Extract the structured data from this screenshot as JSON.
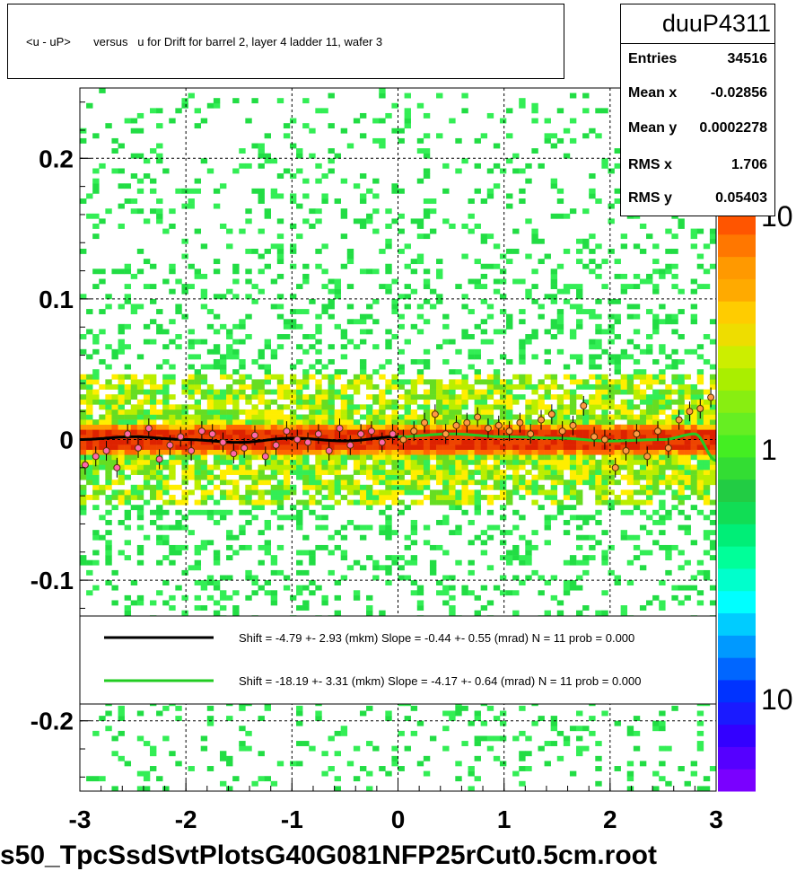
{
  "title": "<u - uP>       versus   u for Drift for barrel 2, layer 4 ladder 11, wafer 3",
  "stats": {
    "name": "duuP4311",
    "rows": [
      {
        "key": "Entries",
        "value": "34516"
      },
      {
        "key": "Mean x",
        "value": "-0.02856"
      },
      {
        "key": "Mean y",
        "value": "0.0002278"
      },
      {
        "key": "RMS x",
        "value": "1.706"
      },
      {
        "key": "RMS y",
        "value": "0.05403"
      }
    ]
  },
  "footer": "s50_TpcSsdSvtPlotsG40G081NFP25rCut0.5cm.root",
  "palette_labels": [
    "10",
    "1",
    "10"
  ],
  "legend": [
    {
      "color": "#000000",
      "text": "Shift =    -4.79 +- 2.93 (mkm) Slope =    -0.44 +- 0.55 (mrad)  N = 11 prob = 0.000"
    },
    {
      "color": "#22cc22",
      "text": "Shift =   -18.19 +- 3.31 (mkm) Slope =    -4.17 +- 0.64 (mrad)  N = 11 prob = 0.000"
    }
  ],
  "chart_data": {
    "type": "heatmap",
    "title": "<u - uP>       versus   u for Drift for barrel 2, layer 4 ladder 11, wafer 3",
    "xlabel": "",
    "ylabel": "",
    "xlim": [
      -3,
      3
    ],
    "ylim": [
      -0.25,
      0.25
    ],
    "x_ticks": [
      -3,
      -2,
      -1,
      0,
      1,
      2,
      3
    ],
    "y_ticks": [
      -0.2,
      -0.1,
      0,
      0.1,
      0.2
    ],
    "x_tick_labels": [
      "-3",
      "-2",
      "-1",
      "0",
      "1",
      "2",
      "3"
    ],
    "y_tick_labels": [
      "-0.2",
      "-0.1",
      "0",
      "0.1",
      "0.2"
    ],
    "grid": true,
    "colorbar": "rainbow, log scale",
    "band_center_y": 0.0,
    "band_core_halfwidth": 0.012,
    "band_outer_halfwidth": 0.045,
    "series": [
      {
        "name": "black fit",
        "color": "#000000",
        "x": [
          -3.0,
          -2.5,
          -2.0,
          -1.5,
          -1.0,
          -0.5,
          0.0
        ],
        "y": [
          0.0,
          0.002,
          0.0,
          -0.002,
          0.001,
          -0.001,
          0.002
        ]
      },
      {
        "name": "green fit",
        "color": "#22cc22",
        "x": [
          0.0,
          0.5,
          1.0,
          1.5,
          2.0,
          2.5,
          2.8,
          3.0
        ],
        "y": [
          0.002,
          0.004,
          0.002,
          0.001,
          -0.001,
          0.0,
          0.004,
          -0.015
        ]
      }
    ],
    "profile_points": {
      "x": [
        -2.95,
        -2.85,
        -2.75,
        -2.65,
        -2.55,
        -2.45,
        -2.35,
        -2.25,
        -2.15,
        -2.05,
        -1.95,
        -1.85,
        -1.75,
        -1.65,
        -1.55,
        -1.45,
        -1.35,
        -1.25,
        -1.15,
        -1.05,
        -0.95,
        -0.85,
        -0.75,
        -0.65,
        -0.55,
        -0.45,
        -0.35,
        -0.25,
        -0.15,
        -0.05,
        0.05,
        0.15,
        0.25,
        0.35,
        0.45,
        0.55,
        0.65,
        0.75,
        0.85,
        0.95,
        1.05,
        1.15,
        1.25,
        1.35,
        1.45,
        1.55,
        1.65,
        1.75,
        1.85,
        1.95,
        2.05,
        2.15,
        2.25,
        2.35,
        2.45,
        2.55,
        2.65,
        2.75,
        2.85,
        2.95
      ],
      "y": [
        -0.018,
        -0.012,
        -0.008,
        -0.02,
        0.004,
        -0.006,
        0.008,
        -0.014,
        -0.004,
        0.002,
        -0.008,
        0.006,
        0.004,
        -0.002,
        -0.01,
        -0.006,
        0.003,
        -0.012,
        -0.004,
        0.006,
        0.0,
        -0.002,
        0.004,
        -0.008,
        0.008,
        -0.004,
        0.004,
        0.006,
        -0.002,
        0.004,
        0.0,
        0.006,
        0.012,
        0.018,
        0.004,
        0.01,
        0.012,
        0.016,
        0.008,
        0.01,
        0.006,
        0.012,
        0.004,
        0.014,
        0.018,
        0.006,
        0.01,
        0.024,
        0.002,
        0.0,
        -0.02,
        -0.008,
        0.004,
        -0.012,
        0.006,
        -0.006,
        0.014,
        0.02,
        0.022,
        0.03
      ]
    }
  }
}
